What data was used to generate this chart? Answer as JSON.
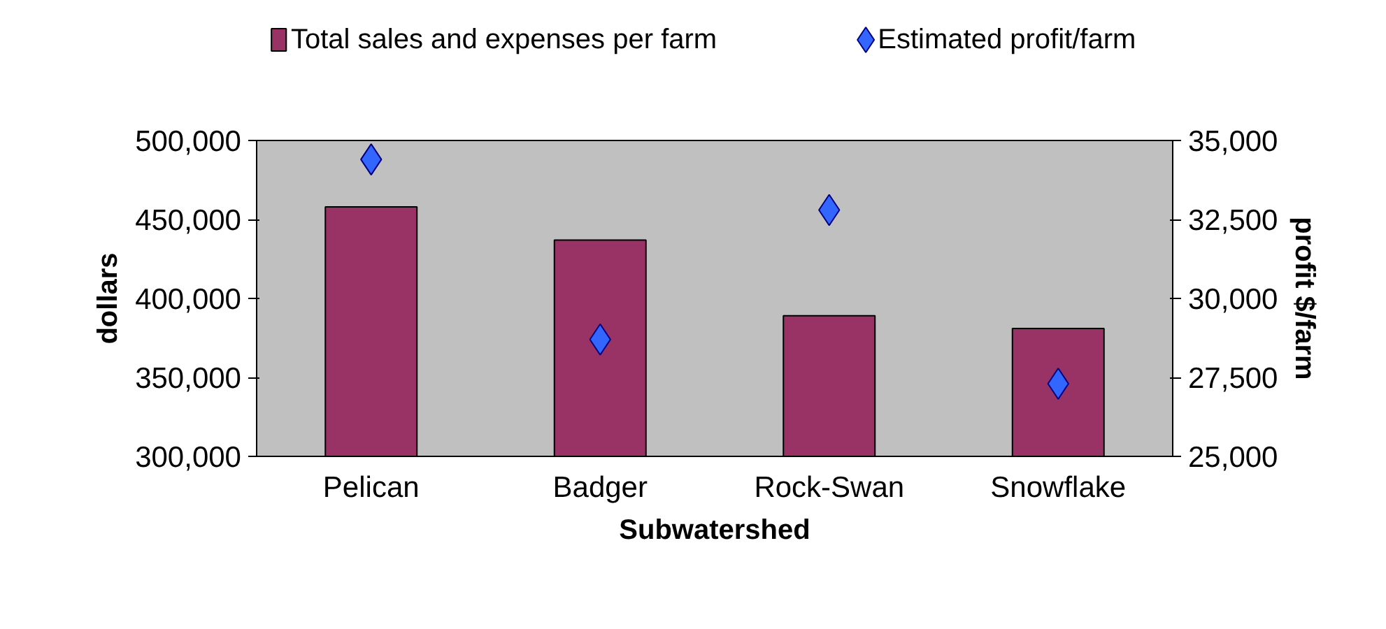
{
  "chart_data": {
    "type": "bar",
    "xlabel": "Subwatershed",
    "ylabel": "dollars",
    "y2label": "profit $/farm",
    "categories": [
      "Pelican",
      "Badger",
      "Rock-Swan",
      "Snowflake"
    ],
    "series": [
      {
        "name": "Total sales and expenses per farm",
        "color": "#993366",
        "values": [
          458000,
          437000,
          389000,
          381000
        ]
      },
      {
        "name": "Estimated profit/farm",
        "type": "scatter",
        "axis": "y2",
        "marker": "diamond",
        "color": "#3366ff",
        "values": [
          34400,
          28700,
          32800,
          27300
        ]
      }
    ],
    "ylim": [
      300000,
      500000
    ],
    "yticks": [
      {
        "value": 300000,
        "label": "300,000"
      },
      {
        "value": 350000,
        "label": "350,000"
      },
      {
        "value": 400000,
        "label": "400,000"
      },
      {
        "value": 450000,
        "label": "450,000"
      },
      {
        "value": 500000,
        "label": "500,000"
      }
    ],
    "y2lim": [
      25000,
      35000
    ],
    "y2ticks": [
      {
        "value": 25000,
        "label": "25,000"
      },
      {
        "value": 27500,
        "label": "27,500"
      },
      {
        "value": 30000,
        "label": "30,000"
      },
      {
        "value": 32500,
        "label": "32,500"
      },
      {
        "value": 35000,
        "label": "35,000"
      }
    ],
    "grid": false,
    "legend": "top"
  }
}
